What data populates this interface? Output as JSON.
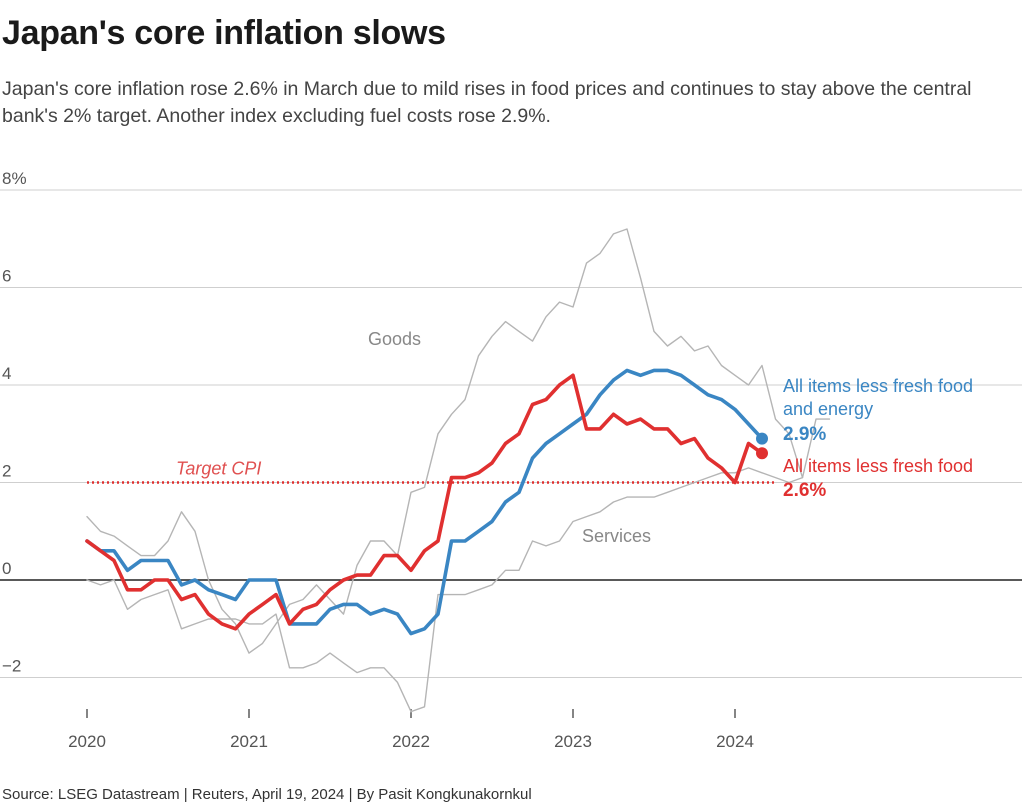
{
  "header": {
    "title": "Japan's core inflation slows",
    "subtitle": "Japan's core inflation rose 2.6% in March due to mild rises in food prices and continues to stay above the central bank's 2% target. Another index excluding fuel costs rose 2.9%."
  },
  "footer": {
    "source": "Source: LSEG Datastream | Reuters, April 19, 2024 | By Pasit Kongkunakornkul"
  },
  "chart_data": {
    "type": "line",
    "x_start": "2020-01",
    "x_ticks": [
      "2020",
      "2021",
      "2022",
      "2023",
      "2024"
    ],
    "y_ticks": [
      "8%",
      "6",
      "4",
      "2",
      "0",
      "−2"
    ],
    "ylim": [
      -2.7,
      8
    ],
    "grid": true,
    "target": {
      "label": "Target CPI",
      "value": 2
    },
    "series": [
      {
        "name": "Goods",
        "label": "Goods",
        "color": "#b5b5b5",
        "values": [
          1.3,
          1.0,
          0.9,
          0.7,
          0.5,
          0.5,
          0.8,
          1.4,
          1.0,
          0.0,
          -0.6,
          -0.9,
          -1.5,
          -1.3,
          -0.9,
          -0.5,
          -0.4,
          -0.1,
          -0.4,
          -0.7,
          0.3,
          0.8,
          0.8,
          0.5,
          1.8,
          1.9,
          3.0,
          3.4,
          3.7,
          4.6,
          5.0,
          5.3,
          5.1,
          4.9,
          5.4,
          5.7,
          5.6,
          6.5,
          6.7,
          7.1,
          7.2,
          6.2,
          5.1,
          4.8,
          5.0,
          4.7,
          4.8,
          4.4,
          4.2,
          4.0,
          4.4,
          3.3,
          3.0,
          2.1,
          3.3,
          3.3
        ]
      },
      {
        "name": "Services",
        "label": "Services",
        "color": "#b5b5b5",
        "values": [
          0.0,
          -0.1,
          0.0,
          -0.6,
          -0.4,
          -0.3,
          -0.2,
          -1.0,
          -0.9,
          -0.8,
          -0.8,
          -0.8,
          -0.9,
          -0.9,
          -0.7,
          -1.8,
          -1.8,
          -1.7,
          -1.5,
          -1.7,
          -1.9,
          -1.8,
          -1.8,
          -2.1,
          -2.7,
          -2.6,
          -0.3,
          -0.3,
          -0.3,
          -0.2,
          -0.1,
          0.2,
          0.2,
          0.8,
          0.7,
          0.8,
          1.2,
          1.3,
          1.4,
          1.6,
          1.7,
          1.7,
          1.7,
          1.8,
          1.9,
          2.0,
          2.1,
          2.2,
          2.2,
          2.3,
          2.2,
          2.1,
          2.0,
          2.1
        ]
      },
      {
        "name": "All items less fresh food and energy",
        "label_lines": [
          "All items less fresh food",
          "and energy"
        ],
        "end_label": "2.9%",
        "color": "#3a86c3",
        "values": [
          0.8,
          0.6,
          0.6,
          0.2,
          0.4,
          0.4,
          0.4,
          -0.1,
          0.0,
          -0.2,
          -0.3,
          -0.4,
          0.0,
          0.0,
          0.0,
          -0.9,
          -0.9,
          -0.9,
          -0.6,
          -0.5,
          -0.5,
          -0.7,
          -0.6,
          -0.7,
          -1.1,
          -1.0,
          -0.7,
          0.8,
          0.8,
          1.0,
          1.2,
          1.6,
          1.8,
          2.5,
          2.8,
          3.0,
          3.2,
          3.4,
          3.8,
          4.1,
          4.3,
          4.2,
          4.3,
          4.3,
          4.2,
          4.0,
          3.8,
          3.7,
          3.5,
          3.2,
          2.9
        ]
      },
      {
        "name": "All items less fresh food",
        "label_lines": [
          "All items less fresh food"
        ],
        "end_label": "2.6%",
        "color": "#e03030",
        "values": [
          0.8,
          0.6,
          0.4,
          -0.2,
          -0.2,
          0.0,
          0.0,
          -0.4,
          -0.3,
          -0.7,
          -0.9,
          -1.0,
          -0.7,
          -0.5,
          -0.3,
          -0.9,
          -0.6,
          -0.5,
          -0.2,
          0.0,
          0.1,
          0.1,
          0.5,
          0.5,
          0.2,
          0.6,
          0.8,
          2.1,
          2.1,
          2.2,
          2.4,
          2.8,
          3.0,
          3.6,
          3.7,
          4.0,
          4.2,
          3.1,
          3.1,
          3.4,
          3.2,
          3.3,
          3.1,
          3.1,
          2.8,
          2.9,
          2.5,
          2.3,
          2.0,
          2.8,
          2.6
        ]
      }
    ]
  }
}
